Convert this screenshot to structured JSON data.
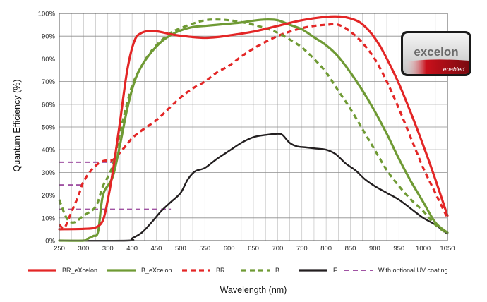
{
  "chart_data": {
    "type": "line",
    "xlabel": "Wavelength (nm)",
    "ylabel": "Quantum Efficiency (%)",
    "xlim": [
      250,
      1050
    ],
    "ylim": [
      0,
      100
    ],
    "x_ticks": [
      250,
      300,
      350,
      400,
      450,
      500,
      550,
      600,
      650,
      700,
      750,
      800,
      850,
      900,
      950,
      1000,
      1050
    ],
    "x_tick_labels": [
      "250",
      "300",
      "350",
      "400",
      "450",
      "500",
      "550",
      "600",
      "650",
      "700",
      "750",
      "800",
      "850",
      "900",
      "950",
      "1000",
      "1050"
    ],
    "x_minor_step": 25,
    "y_ticks": [
      0,
      10,
      20,
      30,
      40,
      50,
      60,
      70,
      80,
      90,
      100
    ],
    "y_tick_labels": [
      "0%",
      "10%",
      "20%",
      "30%",
      "40%",
      "50%",
      "60%",
      "70%",
      "80%",
      "90%",
      "100%"
    ],
    "grid": true,
    "legend_position": "bottom",
    "badge": {
      "brand": "excelon",
      "sub": "enabled"
    },
    "series": [
      {
        "name": "BR_eXcelon",
        "color": "#e32626",
        "dash": "solid",
        "points": [
          [
            250,
            5
          ],
          [
            300,
            5.2
          ],
          [
            325,
            5.8
          ],
          [
            340,
            9
          ],
          [
            350,
            18
          ],
          [
            360,
            30
          ],
          [
            375,
            52
          ],
          [
            390,
            75
          ],
          [
            405,
            88
          ],
          [
            420,
            91.5
          ],
          [
            440,
            92.3
          ],
          [
            460,
            91.8
          ],
          [
            480,
            90.8
          ],
          [
            500,
            90.2
          ],
          [
            525,
            89.6
          ],
          [
            550,
            89.3
          ],
          [
            575,
            89.6
          ],
          [
            600,
            90.3
          ],
          [
            650,
            92
          ],
          [
            700,
            94.5
          ],
          [
            750,
            97
          ],
          [
            800,
            98.5
          ],
          [
            830,
            98.6
          ],
          [
            850,
            97.8
          ],
          [
            870,
            96
          ],
          [
            890,
            92
          ],
          [
            910,
            86
          ],
          [
            930,
            78
          ],
          [
            950,
            69
          ],
          [
            975,
            56
          ],
          [
            1000,
            42
          ],
          [
            1025,
            27
          ],
          [
            1050,
            11
          ]
        ]
      },
      {
        "name": "B_eXcelon",
        "color": "#6f9a34",
        "dash": "solid",
        "points": [
          [
            250,
            0
          ],
          [
            300,
            0
          ],
          [
            310,
            1
          ],
          [
            320,
            2
          ],
          [
            330,
            4
          ],
          [
            340,
            20
          ],
          [
            360,
            28
          ],
          [
            375,
            42
          ],
          [
            390,
            58
          ],
          [
            405,
            70
          ],
          [
            420,
            77
          ],
          [
            440,
            83
          ],
          [
            460,
            87.5
          ],
          [
            480,
            90.5
          ],
          [
            500,
            92.5
          ],
          [
            525,
            94
          ],
          [
            550,
            94.5
          ],
          [
            575,
            95
          ],
          [
            600,
            95.5
          ],
          [
            625,
            96
          ],
          [
            650,
            96.8
          ],
          [
            675,
            97.3
          ],
          [
            700,
            97
          ],
          [
            725,
            95
          ],
          [
            750,
            93
          ],
          [
            775,
            89.5
          ],
          [
            800,
            86
          ],
          [
            825,
            81
          ],
          [
            850,
            74
          ],
          [
            875,
            66
          ],
          [
            900,
            57
          ],
          [
            925,
            47
          ],
          [
            950,
            36
          ],
          [
            975,
            26
          ],
          [
            1000,
            17
          ],
          [
            1025,
            8
          ],
          [
            1050,
            3.5
          ]
        ]
      },
      {
        "name": "BR",
        "color": "#e32626",
        "dash": "dashed",
        "points": [
          [
            250,
            7
          ],
          [
            260,
            5.5
          ],
          [
            270,
            10
          ],
          [
            280,
            15
          ],
          [
            290,
            20
          ],
          [
            300,
            26
          ],
          [
            320,
            32
          ],
          [
            340,
            35
          ],
          [
            360,
            35.5
          ],
          [
            380,
            40
          ],
          [
            400,
            45
          ],
          [
            420,
            48.5
          ],
          [
            450,
            53
          ],
          [
            475,
            58
          ],
          [
            500,
            63
          ],
          [
            525,
            67
          ],
          [
            550,
            70
          ],
          [
            575,
            74
          ],
          [
            600,
            77
          ],
          [
            625,
            81
          ],
          [
            650,
            84.5
          ],
          [
            675,
            87.5
          ],
          [
            700,
            90
          ],
          [
            725,
            92
          ],
          [
            750,
            93.5
          ],
          [
            775,
            94.5
          ],
          [
            800,
            95
          ],
          [
            825,
            95
          ],
          [
            850,
            92
          ],
          [
            875,
            87
          ],
          [
            900,
            80
          ],
          [
            925,
            70
          ],
          [
            950,
            58
          ],
          [
            975,
            45
          ],
          [
            1000,
            32
          ],
          [
            1025,
            21
          ],
          [
            1050,
            10
          ]
        ]
      },
      {
        "name": "B",
        "color": "#6f9a34",
        "dash": "dashed",
        "points": [
          [
            250,
            18
          ],
          [
            265,
            10
          ],
          [
            280,
            8
          ],
          [
            300,
            11
          ],
          [
            325,
            15
          ],
          [
            340,
            24
          ],
          [
            360,
            33
          ],
          [
            380,
            52
          ],
          [
            400,
            68
          ],
          [
            420,
            77
          ],
          [
            440,
            83.5
          ],
          [
            460,
            88
          ],
          [
            480,
            91.5
          ],
          [
            500,
            93.5
          ],
          [
            525,
            95.5
          ],
          [
            550,
            97
          ],
          [
            575,
            97.3
          ],
          [
            600,
            97
          ],
          [
            625,
            96.2
          ],
          [
            650,
            95
          ],
          [
            675,
            93.5
          ],
          [
            700,
            91.5
          ],
          [
            725,
            88.5
          ],
          [
            750,
            85
          ],
          [
            775,
            80
          ],
          [
            800,
            74
          ],
          [
            825,
            66
          ],
          [
            850,
            58
          ],
          [
            875,
            49
          ],
          [
            900,
            40
          ],
          [
            925,
            31
          ],
          [
            950,
            24
          ],
          [
            975,
            18
          ],
          [
            1000,
            13
          ],
          [
            1025,
            7
          ],
          [
            1050,
            3
          ]
        ]
      },
      {
        "name": "F",
        "color": "#231f20",
        "dash": "solid",
        "points": [
          [
            250,
            0
          ],
          [
            390,
            0
          ],
          [
            400,
            1
          ],
          [
            420,
            3.5
          ],
          [
            440,
            8
          ],
          [
            460,
            13
          ],
          [
            480,
            17
          ],
          [
            500,
            21
          ],
          [
            515,
            27
          ],
          [
            530,
            30.5
          ],
          [
            550,
            32
          ],
          [
            575,
            36
          ],
          [
            600,
            39.5
          ],
          [
            625,
            43
          ],
          [
            650,
            45.5
          ],
          [
            675,
            46.5
          ],
          [
            700,
            47
          ],
          [
            710,
            46.5
          ],
          [
            725,
            43
          ],
          [
            740,
            41.5
          ],
          [
            760,
            41
          ],
          [
            780,
            40.5
          ],
          [
            800,
            40
          ],
          [
            820,
            38
          ],
          [
            840,
            34
          ],
          [
            860,
            31
          ],
          [
            880,
            27
          ],
          [
            900,
            24
          ],
          [
            925,
            21
          ],
          [
            950,
            18
          ],
          [
            975,
            14
          ],
          [
            1000,
            10
          ],
          [
            1025,
            7
          ],
          [
            1050,
            3
          ]
        ]
      },
      {
        "name": "With optional UV coating",
        "color": "#a052a3",
        "dash": "dashed",
        "segments": [
          [
            [
              250,
              34.5
            ],
            [
              360,
              34.5
            ]
          ],
          [
            [
              250,
              24.5
            ],
            [
              300,
              24.5
            ]
          ],
          [
            [
              250,
              13.8
            ],
            [
              480,
              13.8
            ]
          ]
        ]
      }
    ]
  }
}
